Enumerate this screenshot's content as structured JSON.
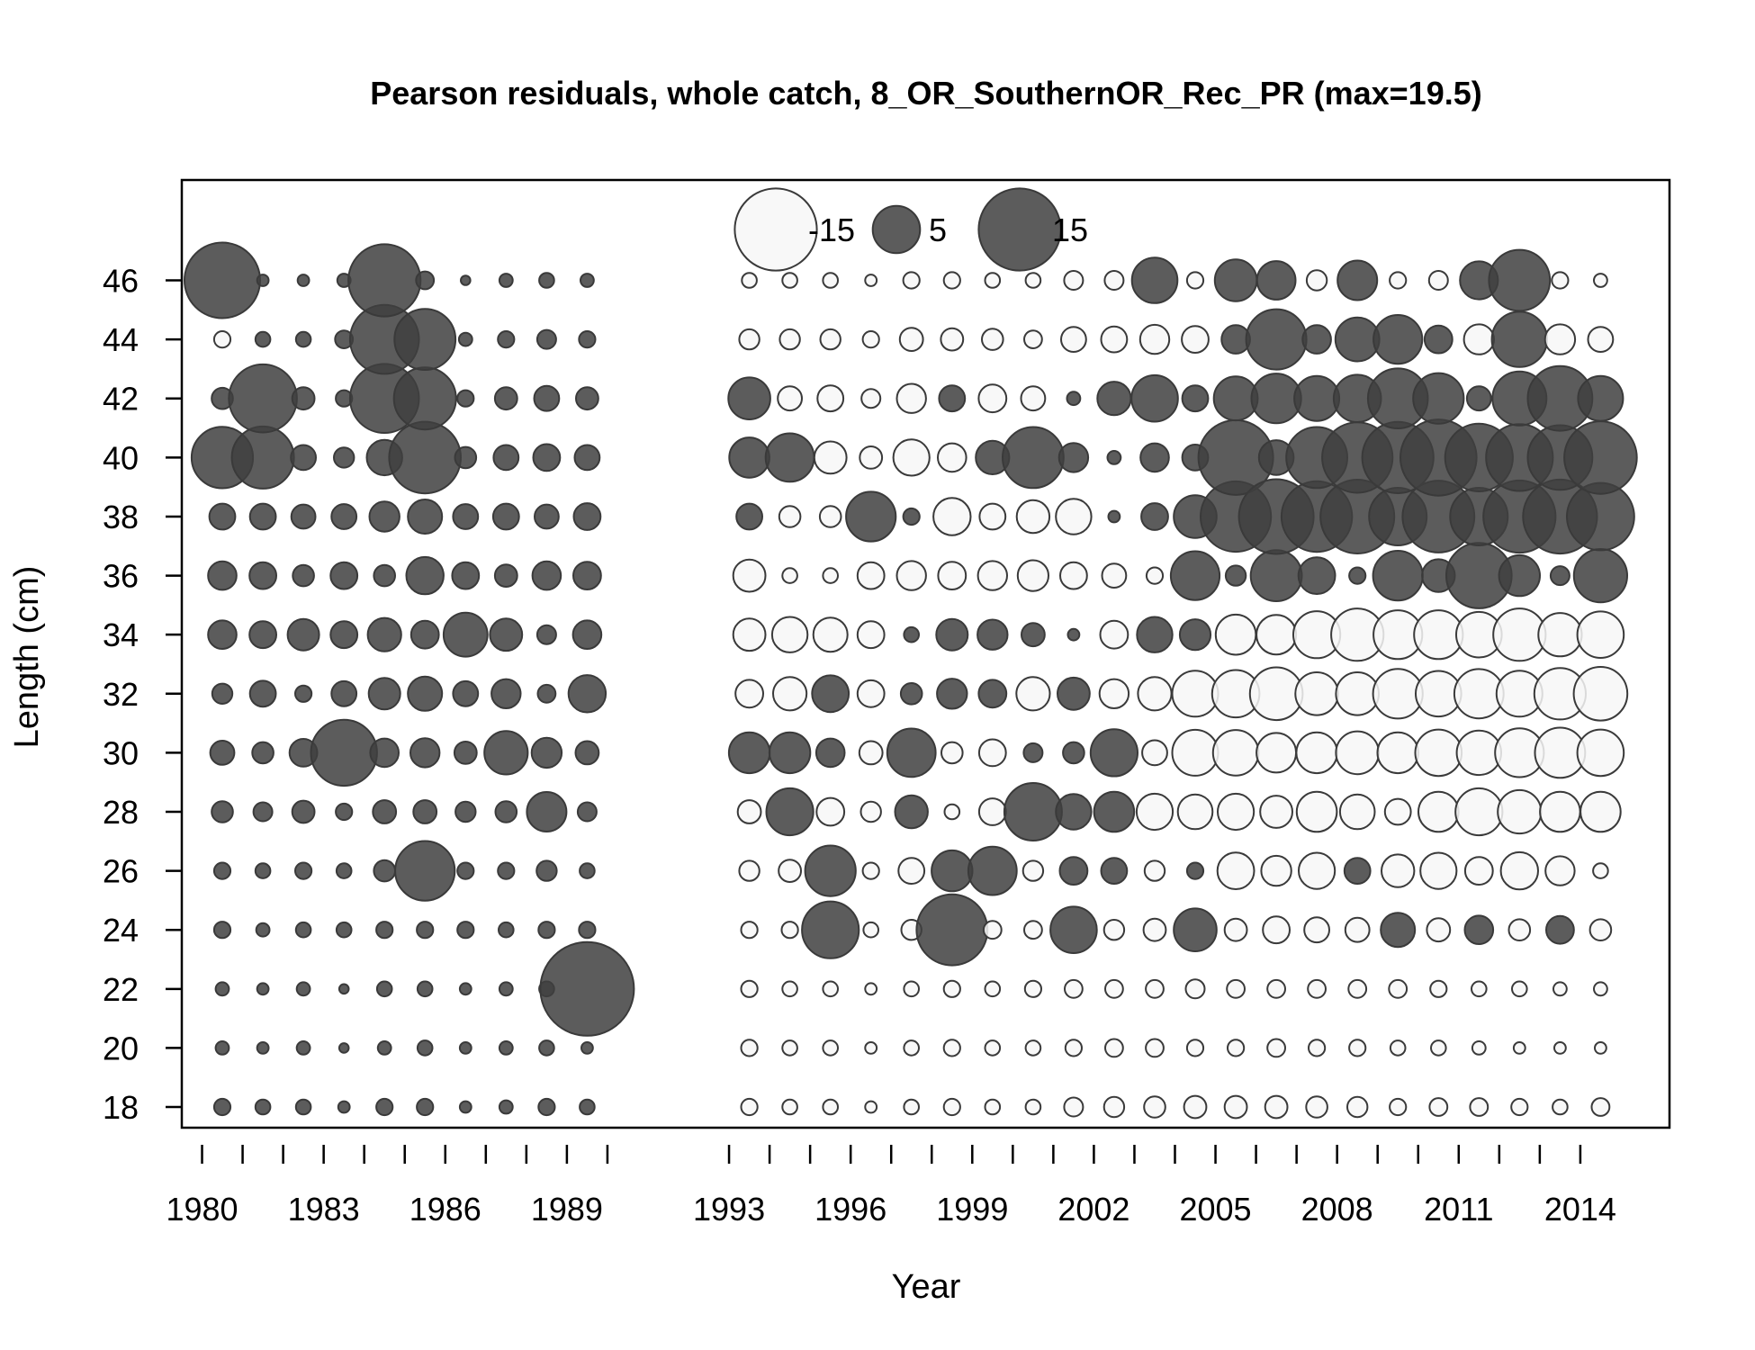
{
  "chart_data": {
    "type": "bubble",
    "title": "Pearson residuals, whole catch, 8_OR_SouthernOR_Rec_PR (max=19.5)",
    "xlabel": "Year",
    "ylabel": "Length (cm)",
    "xlim": [
      1979.5,
      2016.2
    ],
    "ylim": [
      17.3,
      49.4
    ],
    "x_ticks": [
      1980,
      1981,
      1982,
      1983,
      1984,
      1985,
      1986,
      1987,
      1988,
      1989,
      1990,
      1993,
      1994,
      1995,
      1996,
      1997,
      1998,
      1999,
      2000,
      2001,
      2002,
      2003,
      2004,
      2005,
      2006,
      2007,
      2008,
      2009,
      2010,
      2011,
      2012,
      2013,
      2014
    ],
    "x_tick_labels": [
      {
        "value": 1980,
        "label": "1980"
      },
      {
        "value": 1983,
        "label": "1983"
      },
      {
        "value": 1986,
        "label": "1986"
      },
      {
        "value": 1989,
        "label": "1989"
      },
      {
        "value": 1993,
        "label": "1993"
      },
      {
        "value": 1996,
        "label": "1996"
      },
      {
        "value": 1999,
        "label": "1999"
      },
      {
        "value": 2002,
        "label": "2002"
      },
      {
        "value": 2005,
        "label": "2005"
      },
      {
        "value": 2008,
        "label": "2008"
      },
      {
        "value": 2011,
        "label": "2011"
      },
      {
        "value": 2014,
        "label": "2014"
      }
    ],
    "y_ticks": [
      {
        "value": 18,
        "label": "18"
      },
      {
        "value": 20,
        "label": "20"
      },
      {
        "value": 22,
        "label": "22"
      },
      {
        "value": 24,
        "label": "24"
      },
      {
        "value": 26,
        "label": "26"
      },
      {
        "value": 28,
        "label": "28"
      },
      {
        "value": 30,
        "label": "30"
      },
      {
        "value": 32,
        "label": "32"
      },
      {
        "value": 34,
        "label": "34"
      },
      {
        "value": 36,
        "label": "36"
      },
      {
        "value": 38,
        "label": "38"
      },
      {
        "value": 40,
        "label": "40"
      },
      {
        "value": 42,
        "label": "42"
      },
      {
        "value": 44,
        "label": "44"
      },
      {
        "value": 46,
        "label": "46"
      }
    ],
    "lengths": [
      18,
      20,
      22,
      24,
      26,
      28,
      30,
      32,
      34,
      36,
      38,
      40,
      42,
      44,
      46
    ],
    "max_residual": 19.5,
    "legend": {
      "position": "top-center",
      "entries": [
        {
          "label": "-15",
          "value": -15
        },
        {
          "label": "5",
          "value": 5
        },
        {
          "label": "15",
          "value": 15
        }
      ]
    },
    "colors": {
      "positive": "#404040",
      "negative": "#f7f7f7",
      "outline": "#3a3a3a"
    },
    "series": [
      {
        "year": 1980.5,
        "residuals": [
          0.6,
          0.4,
          0.4,
          0.6,
          0.6,
          1,
          1.3,
          0.9,
          1.8,
          1.8,
          1.5,
          8.4,
          1,
          -0.6,
          12.7
        ]
      },
      {
        "year": 1981.5,
        "residuals": [
          0.5,
          0.3,
          0.3,
          0.4,
          0.5,
          0.8,
          1,
          1.5,
          1.6,
          1.6,
          1.5,
          8.6,
          10.3,
          0.5,
          0.3
        ]
      },
      {
        "year": 1982.5,
        "residuals": [
          0.5,
          0.4,
          0.4,
          0.5,
          0.6,
          1.1,
          1.7,
          0.6,
          2.2,
          1,
          1.3,
          1.4,
          1.1,
          0.5,
          0.3
        ]
      },
      {
        "year": 1983.5,
        "residuals": [
          0.3,
          0.2,
          0.2,
          0.5,
          0.5,
          0.6,
          9.7,
          1.4,
          1.6,
          1.6,
          1.4,
          0.9,
          0.6,
          0.7,
          0.4
        ]
      },
      {
        "year": 1984.5,
        "residuals": [
          0.6,
          0.4,
          0.5,
          0.6,
          1,
          1.2,
          1.8,
          2.2,
          2.5,
          1,
          2,
          2.8,
          10.6,
          10.6,
          11.6
        ]
      },
      {
        "year": 1985.5,
        "residuals": [
          0.6,
          0.5,
          0.5,
          0.6,
          7.9,
          1.2,
          1.9,
          2.6,
          1.7,
          3.1,
          2.6,
          11.4,
          8.6,
          8.3,
          0.7
        ]
      },
      {
        "year": 1986.5,
        "residuals": [
          0.3,
          0.3,
          0.3,
          0.6,
          0.6,
          0.9,
          1.1,
          1.4,
          4.3,
          1.6,
          1.4,
          1,
          0.6,
          0.4,
          0.2
        ]
      },
      {
        "year": 1987.5,
        "residuals": [
          0.4,
          0.4,
          0.4,
          0.5,
          0.6,
          1,
          4.2,
          1.9,
          2.3,
          1.1,
          1.5,
          1.4,
          1.1,
          0.6,
          0.4
        ]
      },
      {
        "year": 1988.5,
        "residuals": [
          0.6,
          0.5,
          0.5,
          0.6,
          0.9,
          3.5,
          2,
          0.7,
          0.8,
          1.8,
          1.3,
          1.6,
          1.4,
          0.8,
          0.5
        ]
      },
      {
        "year": 1989.5,
        "residuals": [
          0.5,
          0.3,
          19.5,
          0.6,
          0.5,
          0.8,
          1.2,
          3.1,
          1.8,
          1.7,
          1.6,
          1.4,
          1.1,
          0.6,
          0.4
        ]
      },
      {
        "year": 1993.5,
        "residuals": [
          -0.6,
          -0.6,
          -0.6,
          -0.6,
          -0.9,
          -1.2,
          3.7,
          -1.7,
          -2.3,
          -2.3,
          1.5,
          3.6,
          3.9,
          -0.9,
          -0.5
        ]
      },
      {
        "year": 1994.5,
        "residuals": [
          -0.5,
          -0.5,
          -0.5,
          -0.6,
          -1.1,
          4.9,
          3.7,
          -2.5,
          -2.8,
          -0.5,
          -1,
          5.2,
          -1.3,
          -0.9,
          -0.5
        ]
      },
      {
        "year": 1995.5,
        "residuals": [
          -0.5,
          -0.5,
          -0.5,
          7.2,
          5.7,
          -1.7,
          1.8,
          3,
          -2.6,
          -0.5,
          -1,
          -2.3,
          -1.5,
          -0.9,
          -0.5
        ]
      },
      {
        "year": 1996.5,
        "residuals": [
          -0.3,
          -0.3,
          -0.3,
          -0.5,
          -0.6,
          -0.9,
          -1.2,
          -1.6,
          -1.6,
          -1.6,
          5.5,
          -1.1,
          -0.8,
          -0.6,
          -0.3
        ]
      },
      {
        "year": 1997.5,
        "residuals": [
          -0.5,
          -0.5,
          -0.5,
          -0.9,
          -1.5,
          2.4,
          5.2,
          1,
          0.5,
          -1.9,
          0.6,
          -2.9,
          -1.9,
          -1.2,
          -0.6
        ]
      },
      {
        "year": 1998.5,
        "residuals": [
          -0.6,
          -0.6,
          -0.6,
          11.2,
          3.7,
          -0.5,
          -1,
          2,
          2.2,
          -1.7,
          -3.1,
          -1.8,
          1.5,
          -1.1,
          -0.6
        ]
      },
      {
        "year": 1999.5,
        "residuals": [
          -0.5,
          -0.5,
          -0.5,
          -0.7,
          5.2,
          -1.6,
          -1.6,
          1.7,
          2,
          -1.9,
          -1.5,
          2.5,
          -1.7,
          -1,
          -0.5
        ]
      },
      {
        "year": 2000.5,
        "residuals": [
          -0.5,
          -0.5,
          -0.6,
          -0.7,
          -0.9,
          7.4,
          0.8,
          -2.5,
          1.2,
          -2.1,
          -2.4,
          8.3,
          -1.3,
          -0.7,
          -0.5
        ]
      },
      {
        "year": 2001.5,
        "residuals": [
          -0.8,
          -0.6,
          -0.7,
          4.8,
          1.7,
          2.8,
          1,
          2.3,
          0.3,
          -1.6,
          -2.8,
          1.9,
          0.4,
          -1.4,
          -0.8
        ]
      },
      {
        "year": 2002.5,
        "residuals": [
          -0.9,
          -0.7,
          -0.7,
          -0.9,
          1.5,
          3.6,
          4.9,
          -1.9,
          -1.7,
          -1.3,
          0.3,
          0.4,
          2.5,
          -1.5,
          -0.8
        ]
      },
      {
        "year": 2003.5,
        "residuals": [
          -1,
          -0.7,
          -0.7,
          -1.1,
          -0.9,
          -2.9,
          -1.4,
          -2.5,
          2.8,
          -0.6,
          1.6,
          1.8,
          4.8,
          -1.9,
          4.6
        ]
      },
      {
        "year": 2004.5,
        "residuals": [
          -1.1,
          -0.6,
          -0.8,
          4.1,
          0.6,
          -2.7,
          -4.7,
          -4.7,
          2.1,
          5.3,
          4.1,
          1.5,
          1.5,
          -1.6,
          -0.6
        ]
      },
      {
        "year": 2005.5,
        "residuals": [
          -1.1,
          -0.6,
          -0.7,
          -1.1,
          -3,
          -2.9,
          -4.6,
          -5,
          -3.6,
          0.9,
          11,
          12.4,
          4.3,
          1.8,
          3.9
        ]
      },
      {
        "year": 2006.5,
        "residuals": [
          -1.1,
          -0.7,
          -0.7,
          -1.6,
          -2,
          -2.3,
          -3.5,
          -6.2,
          -3.5,
          5.8,
          12.4,
          2.7,
          5.5,
          8.1,
          3.3
        ]
      },
      {
        "year": 2007.5,
        "residuals": [
          -1,
          -0.6,
          -0.7,
          -1.4,
          -2.9,
          -3.6,
          -3.7,
          -4.1,
          -4.9,
          3,
          11.1,
          8.3,
          4.5,
          1.8,
          -0.9
        ]
      },
      {
        "year": 2008.5,
        "residuals": [
          -0.9,
          -0.6,
          -0.7,
          -1.3,
          1.5,
          -2.7,
          -4.1,
          -4.1,
          -6.1,
          0.6,
          12.1,
          11,
          5,
          4.3,
          3.5
        ]
      },
      {
        "year": 2009.5,
        "residuals": [
          -0.6,
          -0.5,
          -0.7,
          2.6,
          -2.4,
          -1.5,
          -3.7,
          -5.5,
          -5.3,
          5.5,
          7.4,
          11.3,
          8,
          5.3,
          -0.6
        ]
      },
      {
        "year": 2010.5,
        "residuals": [
          -0.7,
          -0.5,
          -0.6,
          -1.2,
          -2.9,
          -3.6,
          -4.8,
          -4.6,
          -5.3,
          2.4,
          11.5,
          12.9,
          5.7,
          1.7,
          -0.8
        ]
      },
      {
        "year": 2011.5,
        "residuals": [
          -0.7,
          -0.4,
          -0.5,
          1.8,
          -1.7,
          -4.9,
          -4.4,
          -5.4,
          -4.6,
          9.5,
          7.4,
          10.2,
          1.3,
          -2,
          3.2
        ]
      },
      {
        "year": 2012.5,
        "residuals": [
          -0.6,
          -0.3,
          -0.5,
          -1,
          -3.1,
          -4.2,
          -5.3,
          -4.7,
          -6.1,
          3.7,
          11.6,
          9.9,
          6.5,
          6.8,
          8.3
        ]
      },
      {
        "year": 2013.5,
        "residuals": [
          -0.5,
          -0.3,
          -0.4,
          1.7,
          -1.9,
          -3.6,
          -5.6,
          -5.9,
          -4.2,
          0.8,
          12.2,
          9.3,
          9.3,
          -2,
          -0.6
        ]
      },
      {
        "year": 2014.5,
        "residuals": [
          -0.7,
          -0.3,
          -0.4,
          -1,
          -0.5,
          -3.6,
          -4.8,
          -6.4,
          -4.8,
          6.3,
          10.1,
          11.7,
          4.5,
          -1.4,
          -0.4
        ]
      }
    ]
  }
}
